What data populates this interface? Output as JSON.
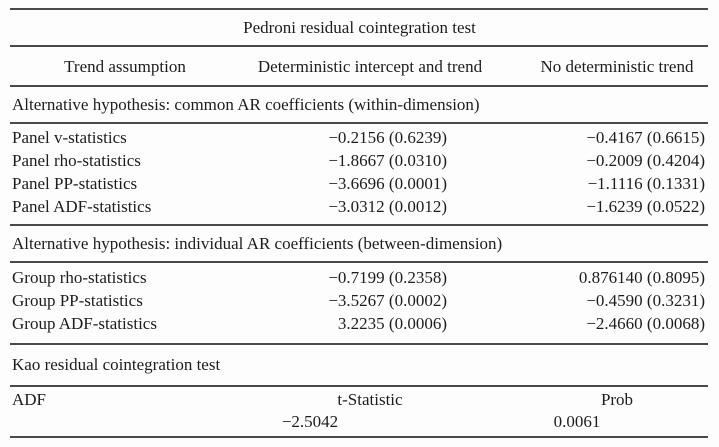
{
  "colors": {
    "rule": "#4a4a4a",
    "text": "#1d1d1d",
    "background": "#fdfdfd"
  },
  "pedroni": {
    "title": "Pedroni residual cointegration test",
    "columns": [
      "Trend assumption",
      "Deterministic intercept and trend",
      "No deterministic trend"
    ],
    "sections": [
      {
        "heading": "Alternative hypothesis: common AR coefficients (within-dimension)",
        "rows": [
          {
            "label": "Panel v-statistics",
            "intercept_trend": "−0.2156 (0.6239)",
            "no_trend": "−0.4167 (0.6615)"
          },
          {
            "label": "Panel rho-statistics",
            "intercept_trend": "−1.8667 (0.0310)",
            "no_trend": "−0.2009 (0.4204)"
          },
          {
            "label": "Panel PP-statistics",
            "intercept_trend": "−3.6696 (0.0001)",
            "no_trend": "−1.1116 (0.1331)"
          },
          {
            "label": "Panel ADF-statistics",
            "intercept_trend": "−3.0312 (0.0012)",
            "no_trend": "−1.6239 (0.0522)"
          }
        ]
      },
      {
        "heading": "Alternative hypothesis: individual AR coefficients (between-dimension)",
        "rows": [
          {
            "label": "Group rho-statistics",
            "intercept_trend": "−0.7199 (0.2358)",
            "no_trend": "0.876140 (0.8095)"
          },
          {
            "label": "Group PP-statistics",
            "intercept_trend": "−3.5267 (0.0002)",
            "no_trend": "−0.4590 (0.3231)"
          },
          {
            "label": "Group ADF-statistics",
            "intercept_trend": "3.2235 (0.0006)",
            "no_trend": "−2.4660 (0.0068)"
          }
        ]
      }
    ]
  },
  "kao": {
    "title": "Kao residual cointegration test",
    "row_label": "ADF",
    "col_headers": [
      "t-Statistic",
      "Prob"
    ],
    "values": [
      "−2.5042",
      "0.0061"
    ]
  }
}
